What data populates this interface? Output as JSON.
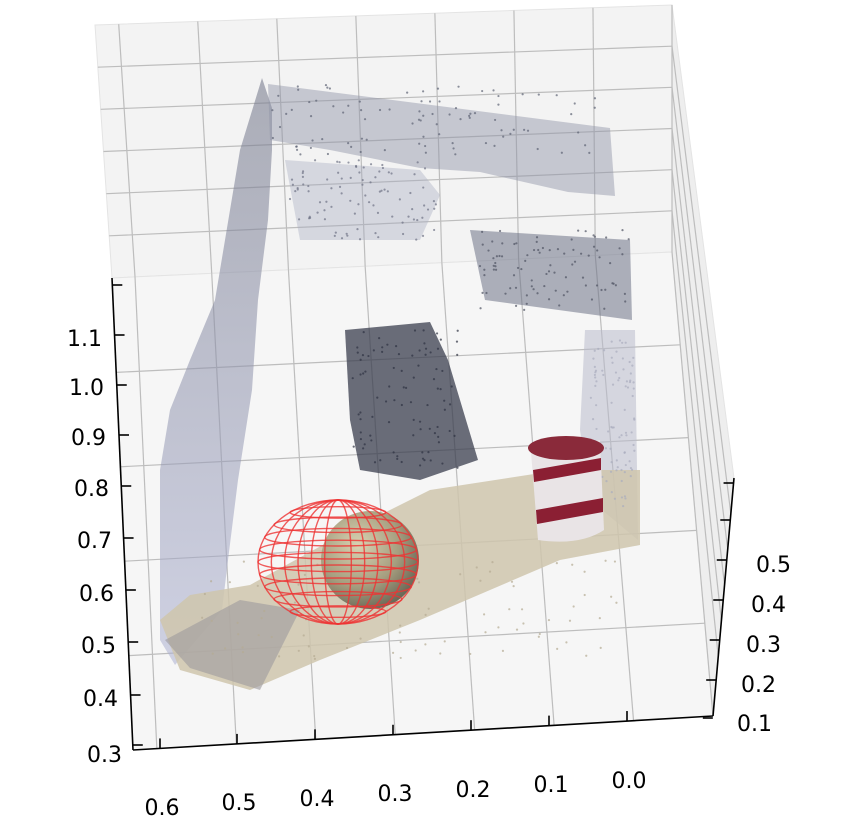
{
  "chart_data": {
    "type": "scatter",
    "projection": "3d",
    "title": "",
    "xlabel": "",
    "ylabel": "",
    "zlabel": "",
    "grid": true,
    "x_ticks": [
      "0.6",
      "0.5",
      "0.4",
      "0.3",
      "0.2",
      "0.1",
      "0.0"
    ],
    "y_ticks": [
      "0.1",
      "0.2",
      "0.3",
      "0.4",
      "0.5"
    ],
    "z_ticks": [
      "0.3",
      "0.4",
      "0.5",
      "0.6",
      "0.7",
      "0.8",
      "0.9",
      "1.0",
      "1.1"
    ],
    "xlim": [
      0.65,
      -0.05
    ],
    "ylim": [
      0.08,
      0.55
    ],
    "zlim": [
      0.3,
      1.15
    ],
    "series": [],
    "colors": {
      "sphere_wireframe": "#ee3333",
      "floor_points": "#c9bfa6",
      "wall_points": "#9aa2c0",
      "dark_points": "#3b4050",
      "pane": "#f2f2f2",
      "grid": "#b0b0b0"
    }
  }
}
